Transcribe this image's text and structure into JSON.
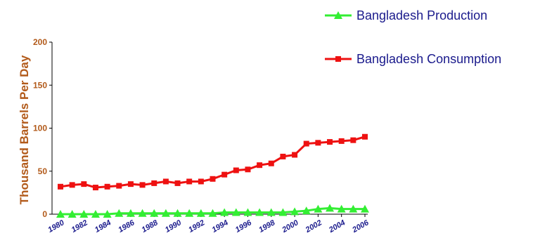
{
  "chart_data": {
    "type": "line",
    "ylabel": "Thousand Barrels Per Day",
    "ylim": [
      0,
      200
    ],
    "yticks": [
      "0",
      "50",
      "100",
      "150",
      "200"
    ],
    "ytick_values": [
      0,
      50,
      100,
      150,
      200
    ],
    "x": [
      1980,
      1981,
      1982,
      1983,
      1984,
      1985,
      1986,
      1987,
      1988,
      1989,
      1990,
      1991,
      1992,
      1993,
      1994,
      1995,
      1996,
      1997,
      1998,
      1999,
      2000,
      2001,
      2002,
      2003,
      2004,
      2005,
      2006
    ],
    "xticks": [
      "1980",
      "1982",
      "1984",
      "1986",
      "1988",
      "1990",
      "1992",
      "1994",
      "1996",
      "1998",
      "2000",
      "2002",
      "2004",
      "2006"
    ],
    "xtick_values": [
      1980,
      1982,
      1984,
      1986,
      1988,
      1990,
      1992,
      1994,
      1996,
      1998,
      2000,
      2002,
      2004,
      2006
    ],
    "legend_position": "top-right",
    "series": [
      {
        "name": "Bangladesh Production",
        "color": "#33ee33",
        "marker": "triangle",
        "values": [
          0,
          0,
          0,
          0,
          0,
          1,
          1,
          1,
          1,
          1,
          1,
          1,
          1,
          1,
          2,
          2,
          2,
          2,
          2,
          2,
          3,
          4,
          6,
          7,
          6,
          6,
          6
        ]
      },
      {
        "name": "Bangladesh Consumption",
        "color": "#ee1111",
        "marker": "square",
        "values": [
          32,
          34,
          35,
          31,
          32,
          33,
          35,
          34,
          36,
          38,
          36,
          38,
          38,
          41,
          46,
          51,
          52,
          57,
          59,
          67,
          69,
          82,
          83,
          84,
          85,
          86,
          90
        ]
      }
    ]
  }
}
